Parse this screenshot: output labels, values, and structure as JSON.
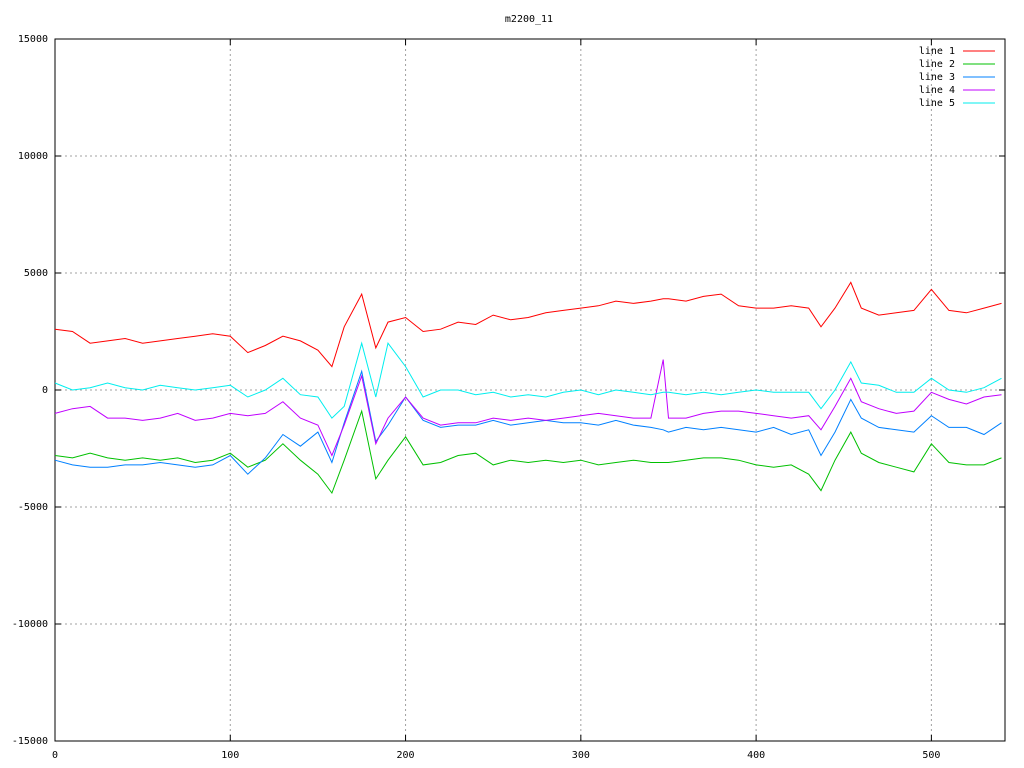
{
  "chart_data": {
    "type": "line",
    "title": "m2200_11",
    "x": [
      0,
      10,
      20,
      30,
      40,
      50,
      60,
      70,
      80,
      90,
      100,
      110,
      120,
      130,
      140,
      150,
      158,
      165,
      175,
      183,
      190,
      200,
      210,
      220,
      230,
      240,
      250,
      260,
      270,
      280,
      290,
      300,
      310,
      320,
      330,
      340,
      347,
      350,
      360,
      370,
      380,
      390,
      400,
      410,
      420,
      430,
      437,
      445,
      454,
      460,
      470,
      480,
      490,
      500,
      510,
      520,
      530,
      540
    ],
    "series": [
      {
        "name": "line 1",
        "color": "#ff0000",
        "values": [
          2600,
          2500,
          2000,
          2100,
          2200,
          2000,
          2100,
          2200,
          2300,
          2400,
          2300,
          1600,
          1900,
          2300,
          2100,
          1700,
          1000,
          2700,
          4100,
          1800,
          2900,
          3100,
          2500,
          2600,
          2900,
          2800,
          3200,
          3000,
          3100,
          3300,
          3400,
          3500,
          3600,
          3800,
          3700,
          3800,
          3900,
          3900,
          3800,
          4000,
          4100,
          3600,
          3500,
          3500,
          3600,
          3500,
          2700,
          3500,
          4600,
          3500,
          3200,
          3300,
          3400,
          4300,
          3400,
          3300,
          3500,
          3700
        ]
      },
      {
        "name": "line 2",
        "color": "#00c000",
        "values": [
          -2800,
          -2900,
          -2700,
          -2900,
          -3000,
          -2900,
          -3000,
          -2900,
          -3100,
          -3000,
          -2700,
          -3300,
          -3000,
          -2300,
          -3000,
          -3600,
          -4400,
          -3000,
          -900,
          -3800,
          -3000,
          -2000,
          -3200,
          -3100,
          -2800,
          -2700,
          -3200,
          -3000,
          -3100,
          -3000,
          -3100,
          -3000,
          -3200,
          -3100,
          -3000,
          -3100,
          -3100,
          -3100,
          -3000,
          -2900,
          -2900,
          -3000,
          -3200,
          -3300,
          -3200,
          -3600,
          -4300,
          -3000,
          -1800,
          -2700,
          -3100,
          -3300,
          -3500,
          -2300,
          -3100,
          -3200,
          -3200,
          -2900
        ]
      },
      {
        "name": "line 3",
        "color": "#0080ff",
        "values": [
          -3000,
          -3200,
          -3300,
          -3300,
          -3200,
          -3200,
          -3100,
          -3200,
          -3300,
          -3200,
          -2800,
          -3600,
          -2900,
          -1900,
          -2400,
          -1800,
          -3100,
          -1400,
          800,
          -2200,
          -1500,
          -300,
          -1300,
          -1600,
          -1500,
          -1500,
          -1300,
          -1500,
          -1400,
          -1300,
          -1400,
          -1400,
          -1500,
          -1300,
          -1500,
          -1600,
          -1700,
          -1800,
          -1600,
          -1700,
          -1600,
          -1700,
          -1800,
          -1600,
          -1900,
          -1700,
          -2800,
          -1800,
          -400,
          -1200,
          -1600,
          -1700,
          -1800,
          -1100,
          -1600,
          -1600,
          -1900,
          -1400
        ]
      },
      {
        "name": "line 4",
        "color": "#c000ff",
        "values": [
          -1000,
          -800,
          -700,
          -1200,
          -1200,
          -1300,
          -1200,
          -1000,
          -1300,
          -1200,
          -1000,
          -1100,
          -1000,
          -500,
          -1200,
          -1500,
          -2800,
          -1500,
          600,
          -2300,
          -1200,
          -300,
          -1200,
          -1500,
          -1400,
          -1400,
          -1200,
          -1300,
          -1200,
          -1300,
          -1200,
          -1100,
          -1000,
          -1100,
          -1200,
          -1200,
          1300,
          -1200,
          -1200,
          -1000,
          -900,
          -900,
          -1000,
          -1100,
          -1200,
          -1100,
          -1700,
          -700,
          500,
          -500,
          -800,
          -1000,
          -900,
          -100,
          -400,
          -600,
          -300,
          -200
        ]
      },
      {
        "name": "line 5",
        "color": "#00eeee",
        "values": [
          300,
          0,
          100,
          300,
          100,
          0,
          200,
          100,
          0,
          100,
          200,
          -300,
          0,
          500,
          -200,
          -300,
          -1200,
          -700,
          2000,
          -300,
          2000,
          1000,
          -300,
          0,
          0,
          -200,
          -100,
          -300,
          -200,
          -300,
          -100,
          0,
          -200,
          0,
          -100,
          -200,
          -100,
          -100,
          -200,
          -100,
          -200,
          -100,
          0,
          -100,
          -100,
          -100,
          -800,
          0,
          1200,
          300,
          200,
          -100,
          -100,
          500,
          0,
          -100,
          100,
          500
        ]
      }
    ],
    "xlim": [
      0,
      542
    ],
    "ylim": [
      -15000,
      15000
    ],
    "xticks": [
      0,
      100,
      200,
      300,
      400,
      500
    ],
    "yticks": [
      -15000,
      -10000,
      -5000,
      0,
      5000,
      10000,
      15000
    ],
    "grid": true,
    "legend": "top-right"
  }
}
